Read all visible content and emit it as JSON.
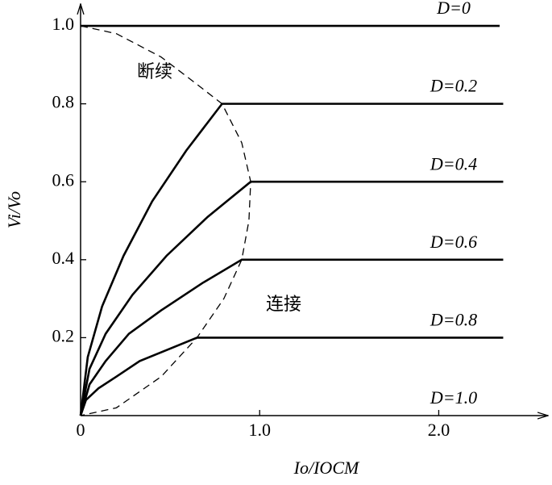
{
  "chart_data": {
    "type": "line",
    "x_label": "Io/IOCM",
    "y_label": "Vi/Vo",
    "xlim": [
      0,
      2.61
    ],
    "ylim": [
      0,
      1.056
    ],
    "xticks": [
      0,
      {
        "value": 1,
        "label": "1.0"
      },
      {
        "value": 2,
        "label": "2.0"
      }
    ],
    "yticks": [
      0.2,
      0.4,
      0.6,
      0.8,
      {
        "value": 1,
        "label": "1.0"
      }
    ],
    "color": "#000000",
    "series": [
      {
        "name": "D=0",
        "x": [
          0,
          2.34
        ],
        "values": [
          1,
          1
        ]
      },
      {
        "name": "D=0.2",
        "x": [
          0,
          0.04,
          0.12,
          0.24,
          0.4,
          0.59,
          0.79,
          2.36
        ],
        "values": [
          0,
          0.15,
          0.28,
          0.41,
          0.55,
          0.68,
          0.8,
          0.8
        ]
      },
      {
        "name": "D=0.4",
        "x": [
          0,
          0.05,
          0.14,
          0.29,
          0.48,
          0.71,
          0.95,
          2.36
        ],
        "values": [
          0,
          0.12,
          0.21,
          0.31,
          0.41,
          0.51,
          0.6,
          0.6
        ]
      },
      {
        "name": "D=0.6",
        "x": [
          0,
          0.05,
          0.14,
          0.27,
          0.45,
          0.68,
          0.9,
          2.36
        ],
        "values": [
          0,
          0.08,
          0.14,
          0.21,
          0.27,
          0.34,
          0.4,
          0.4
        ]
      },
      {
        "name": "D=0.8",
        "x": [
          0,
          0.03,
          0.1,
          0.2,
          0.33,
          0.49,
          0.65,
          2.36
        ],
        "values": [
          0,
          0.04,
          0.07,
          0.1,
          0.14,
          0.17,
          0.2,
          0.2
        ]
      },
      {
        "name": "D=1.0",
        "x": [],
        "values": []
      }
    ],
    "boundary": {
      "x": [
        0,
        0.2,
        0.45,
        0.65,
        0.79,
        0.9,
        0.95,
        0.94,
        0.9,
        0.8,
        0.65,
        0.45,
        0.2,
        0
      ],
      "values": [
        1,
        0.98,
        0.92,
        0.85,
        0.8,
        0.7,
        0.6,
        0.5,
        0.4,
        0.3,
        0.2,
        0.1,
        0.02,
        0
      ]
    },
    "annotations": [
      "断续",
      "连接"
    ]
  }
}
